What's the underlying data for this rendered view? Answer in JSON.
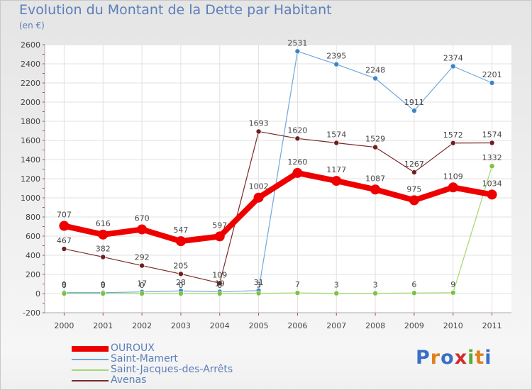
{
  "title": "Evolution du Montant de la Dette par Habitant",
  "subtitle": "(en €)",
  "logo": {
    "text": "Proxiti",
    "letters": [
      "P",
      "r",
      "o",
      "x",
      "i",
      "t",
      "i"
    ],
    "colors": [
      "#3a6fc4",
      "#e0801e",
      "#3a6fc4",
      "#d22c2c",
      "#5aa832",
      "#e0801e",
      "#3a6fc4"
    ]
  },
  "chart_data": {
    "type": "line",
    "title": "Evolution du Montant de la Dette par Habitant",
    "subtitle": "(en €)",
    "x": [
      "2000",
      "2001",
      "2002",
      "2003",
      "2004",
      "2005",
      "2006",
      "2007",
      "2008",
      "2009",
      "2010",
      "2011"
    ],
    "ylim": [
      -200,
      2600
    ],
    "yticks": [
      -200,
      0,
      200,
      400,
      600,
      800,
      1000,
      1200,
      1400,
      1600,
      1800,
      2000,
      2200,
      2400,
      2600
    ],
    "grid": true,
    "legend_position": "bottom-left",
    "series": [
      {
        "name": "OUROUX",
        "color": "#ee0000",
        "point_color": "#ee0000",
        "width": 8,
        "radius": 7,
        "values": [
          707,
          616,
          670,
          547,
          597,
          1002,
          1260,
          1177,
          1087,
          975,
          1109,
          1034
        ],
        "labels": [
          "707",
          "616",
          "670",
          "547",
          "597",
          "1002",
          "1260",
          "1177",
          "1087",
          "975",
          "1109",
          "1034"
        ],
        "start": 0
      },
      {
        "name": "Saint-Mamert",
        "color": "#6fa8dc",
        "point_color": "#3d85c6",
        "width": 1.2,
        "radius": 3.5,
        "values": [
          9,
          9,
          17,
          28,
          19,
          31,
          2531,
          2395,
          2248,
          1911,
          2374,
          2201
        ],
        "labels": [
          "9",
          "9",
          "17",
          "28",
          "19",
          "31",
          "2531",
          "2395",
          "2248",
          "1911",
          "2374",
          "2201"
        ],
        "start": 0
      },
      {
        "name": "Saint-Jacques-des-Arrêts",
        "color": "#a4d86e",
        "point_color": "#7dc242",
        "width": 1.2,
        "radius": 3.5,
        "values": [
          0,
          0,
          0,
          0,
          0,
          3,
          7,
          3,
          3,
          6,
          9,
          1332
        ],
        "labels": [
          "0",
          "0",
          "0",
          "0",
          "0",
          "3",
          "7",
          "3",
          "3",
          "6",
          "9",
          "1332"
        ],
        "start": 0
      },
      {
        "name": "Avenas",
        "color": "#7a2a2a",
        "point_color": "#6e1f1f",
        "width": 1.2,
        "radius": 3.5,
        "values": [
          467,
          382,
          292,
          205,
          109,
          1693,
          1620,
          1574,
          1529,
          1267,
          1572,
          1574
        ],
        "labels": [
          "467",
          "382",
          "292",
          "205",
          "109",
          "1693",
          "1620",
          "1574",
          "1529",
          "1267",
          "1572",
          "1574"
        ],
        "start": 0
      }
    ]
  }
}
